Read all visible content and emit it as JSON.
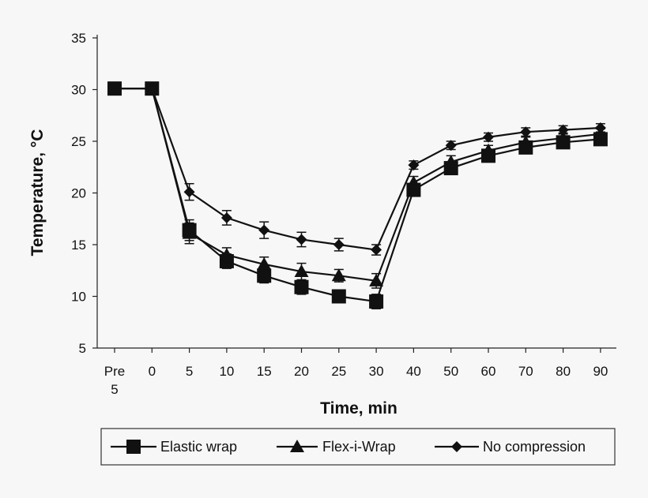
{
  "chart_data": {
    "type": "line",
    "xlabel": "Time, min",
    "ylabel": "Temperature, °C",
    "ylim": [
      5,
      35
    ],
    "yticks": [
      5,
      10,
      15,
      20,
      25,
      30,
      35
    ],
    "categories": [
      [
        "Pre",
        "5"
      ],
      [
        "0"
      ],
      [
        "5"
      ],
      [
        "10"
      ],
      [
        "15"
      ],
      [
        "20"
      ],
      [
        "25"
      ],
      [
        "30"
      ],
      [
        "40"
      ],
      [
        "50"
      ],
      [
        "60"
      ],
      [
        "70"
      ],
      [
        "80"
      ],
      [
        "90"
      ]
    ],
    "grid": false,
    "legend_position": "bottom",
    "series": [
      {
        "name": "Elastic wrap",
        "marker": "square",
        "values": [
          30.1,
          30.1,
          16.4,
          13.4,
          12.0,
          10.9,
          10.0,
          9.5,
          20.3,
          22.4,
          23.6,
          24.4,
          24.9,
          25.2
        ],
        "error": [
          0.2,
          0.2,
          1.0,
          0.7,
          0.7,
          0.7,
          0.6,
          0.7,
          0.6,
          0.6,
          0.5,
          0.5,
          0.5,
          0.5
        ]
      },
      {
        "name": "Flex-i-Wrap",
        "marker": "triangle",
        "values": [
          30.1,
          30.1,
          16.1,
          14.0,
          13.1,
          12.4,
          12.0,
          11.5,
          21.0,
          23.0,
          24.1,
          24.9,
          25.3,
          25.7
        ],
        "error": [
          0.2,
          0.2,
          1.0,
          0.7,
          0.7,
          0.8,
          0.6,
          0.7,
          0.6,
          0.6,
          0.5,
          0.5,
          0.5,
          0.5
        ]
      },
      {
        "name": "No compression",
        "marker": "diamond",
        "values": [
          30.1,
          30.1,
          20.1,
          17.6,
          16.4,
          15.5,
          15.0,
          14.5,
          22.7,
          24.6,
          25.4,
          25.9,
          26.1,
          26.3
        ],
        "error": [
          0.2,
          0.2,
          0.8,
          0.7,
          0.8,
          0.7,
          0.6,
          0.5,
          0.4,
          0.4,
          0.4,
          0.4,
          0.4,
          0.4
        ]
      }
    ]
  }
}
